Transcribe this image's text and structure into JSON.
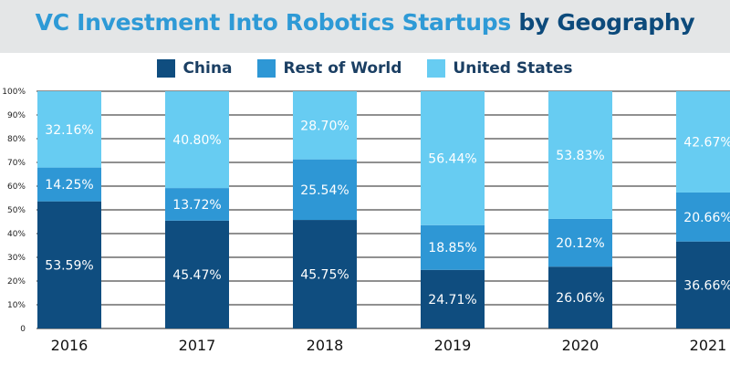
{
  "title_main": "VC Investment Into Robotics Startups",
  "title_suffix": "by Geography",
  "legend": [
    {
      "label": "China",
      "color": "#0f4d7f"
    },
    {
      "label": "Rest of World",
      "color": "#2e97d5"
    },
    {
      "label": "United States",
      "color": "#67ccf2"
    }
  ],
  "chart_data": {
    "type": "bar",
    "stacked": true,
    "title": "VC Investment Into Robotics Startups by Geography",
    "categories": [
      "2016",
      "2017",
      "2018",
      "2019",
      "2020",
      "2021"
    ],
    "series": [
      {
        "name": "China",
        "values": [
          53.59,
          45.47,
          45.75,
          24.71,
          26.06,
          36.66
        ],
        "labels": [
          "53.59%",
          "45.47%",
          "45.75%",
          "24.71%",
          "26.06%",
          "36.66%"
        ]
      },
      {
        "name": "Rest of World",
        "values": [
          14.25,
          13.72,
          25.54,
          18.85,
          20.12,
          20.66
        ],
        "labels": [
          "14.25%",
          "13.72%",
          "25.54%",
          "18.85%",
          "20.12%",
          "20.66%"
        ]
      },
      {
        "name": "United States",
        "values": [
          32.16,
          40.8,
          28.7,
          56.44,
          53.83,
          42.67
        ],
        "labels": [
          "32.16%",
          "40.80%",
          "28.70%",
          "56.44%",
          "53.83%",
          "42.67%"
        ]
      }
    ],
    "yticks": [
      "0",
      "10%",
      "20%",
      "30%",
      "40%",
      "50%",
      "60%",
      "70%",
      "80%",
      "90%",
      "100%"
    ],
    "ylim": [
      0,
      100
    ]
  }
}
